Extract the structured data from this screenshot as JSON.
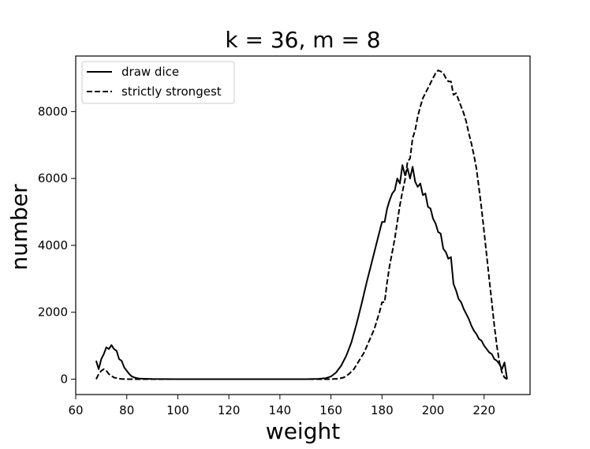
{
  "chart_data": {
    "type": "line",
    "title": "k = 36, m = 8",
    "xlabel": "weight",
    "ylabel": "number",
    "xlim": [
      60,
      238
    ],
    "ylim": [
      -460,
      9660
    ],
    "xticks": [
      60,
      80,
      100,
      120,
      140,
      160,
      180,
      200,
      220
    ],
    "yticks": [
      0,
      2000,
      4000,
      6000,
      8000
    ],
    "grid": false,
    "legend_position": "upper-left",
    "series": [
      {
        "name": "draw dice",
        "style": "solid",
        "color": "#000000",
        "x": [
          68,
          69,
          70,
          71,
          72,
          73,
          74,
          75,
          76,
          77,
          78,
          79,
          80,
          81,
          82,
          83,
          84,
          85,
          88,
          90,
          100,
          110,
          120,
          130,
          140,
          150,
          155,
          158,
          160,
          162,
          164,
          166,
          168,
          170,
          172,
          174,
          176,
          178,
          180,
          181,
          182,
          183,
          184,
          185,
          186,
          187,
          188,
          189,
          190,
          191,
          192,
          193,
          194,
          195,
          196,
          197,
          198,
          199,
          200,
          201,
          202,
          203,
          204,
          205,
          206,
          207,
          208,
          209,
          210,
          211,
          212,
          213,
          214,
          215,
          216,
          217,
          218,
          219,
          220,
          221,
          222,
          223,
          224,
          225,
          226,
          227,
          228,
          229
        ],
        "y": [
          550,
          300,
          600,
          750,
          950,
          900,
          1020,
          900,
          850,
          600,
          550,
          350,
          250,
          150,
          80,
          50,
          30,
          20,
          10,
          5,
          0,
          0,
          0,
          0,
          0,
          0,
          10,
          30,
          80,
          200,
          400,
          700,
          1100,
          1650,
          2250,
          2900,
          3500,
          4100,
          4700,
          4700,
          5100,
          5350,
          5550,
          5650,
          6000,
          5850,
          6400,
          6100,
          6300,
          6000,
          6350,
          5900,
          5750,
          5850,
          5500,
          5550,
          5150,
          5100,
          4800,
          4650,
          4400,
          4350,
          3900,
          3800,
          3600,
          3650,
          2850,
          2650,
          2400,
          2300,
          2100,
          1950,
          1800,
          1600,
          1450,
          1350,
          1200,
          1150,
          1000,
          900,
          800,
          750,
          600,
          550,
          450,
          300,
          500,
          0
        ]
      },
      {
        "name": "strictly strongest",
        "style": "dashed",
        "color": "#000000",
        "x": [
          68,
          69,
          70,
          71,
          72,
          73,
          74,
          75,
          76,
          77,
          78,
          80,
          85,
          90,
          100,
          110,
          120,
          130,
          140,
          150,
          155,
          160,
          163,
          165,
          167,
          169,
          171,
          173,
          175,
          177,
          178,
          179,
          180,
          181,
          182,
          183,
          184,
          185,
          186,
          187,
          188,
          189,
          190,
          191,
          192,
          193,
          194,
          195,
          196,
          197,
          198,
          199,
          200,
          201,
          202,
          203,
          204,
          205,
          206,
          207,
          208,
          209,
          210,
          211,
          212,
          213,
          214,
          215,
          216,
          217,
          218,
          219,
          220,
          221,
          222,
          223,
          224,
          225,
          226,
          227,
          228,
          229
        ],
        "y": [
          0,
          150,
          250,
          300,
          250,
          150,
          100,
          50,
          30,
          15,
          5,
          0,
          0,
          0,
          0,
          0,
          0,
          0,
          0,
          0,
          0,
          0,
          15,
          50,
          150,
          300,
          550,
          800,
          1150,
          1500,
          1750,
          2000,
          2300,
          2300,
          2900,
          3400,
          3800,
          4200,
          4700,
          5200,
          5600,
          5950,
          6500,
          6600,
          7200,
          7450,
          7850,
          8150,
          8400,
          8550,
          8700,
          8850,
          9000,
          9150,
          9230,
          9200,
          9150,
          9000,
          8900,
          8900,
          8500,
          8550,
          8350,
          8150,
          7950,
          7700,
          7350,
          7050,
          6700,
          6300,
          5700,
          5100,
          4400,
          3700,
          3000,
          2300,
          1600,
          1000,
          500,
          200,
          50,
          0
        ]
      }
    ]
  }
}
